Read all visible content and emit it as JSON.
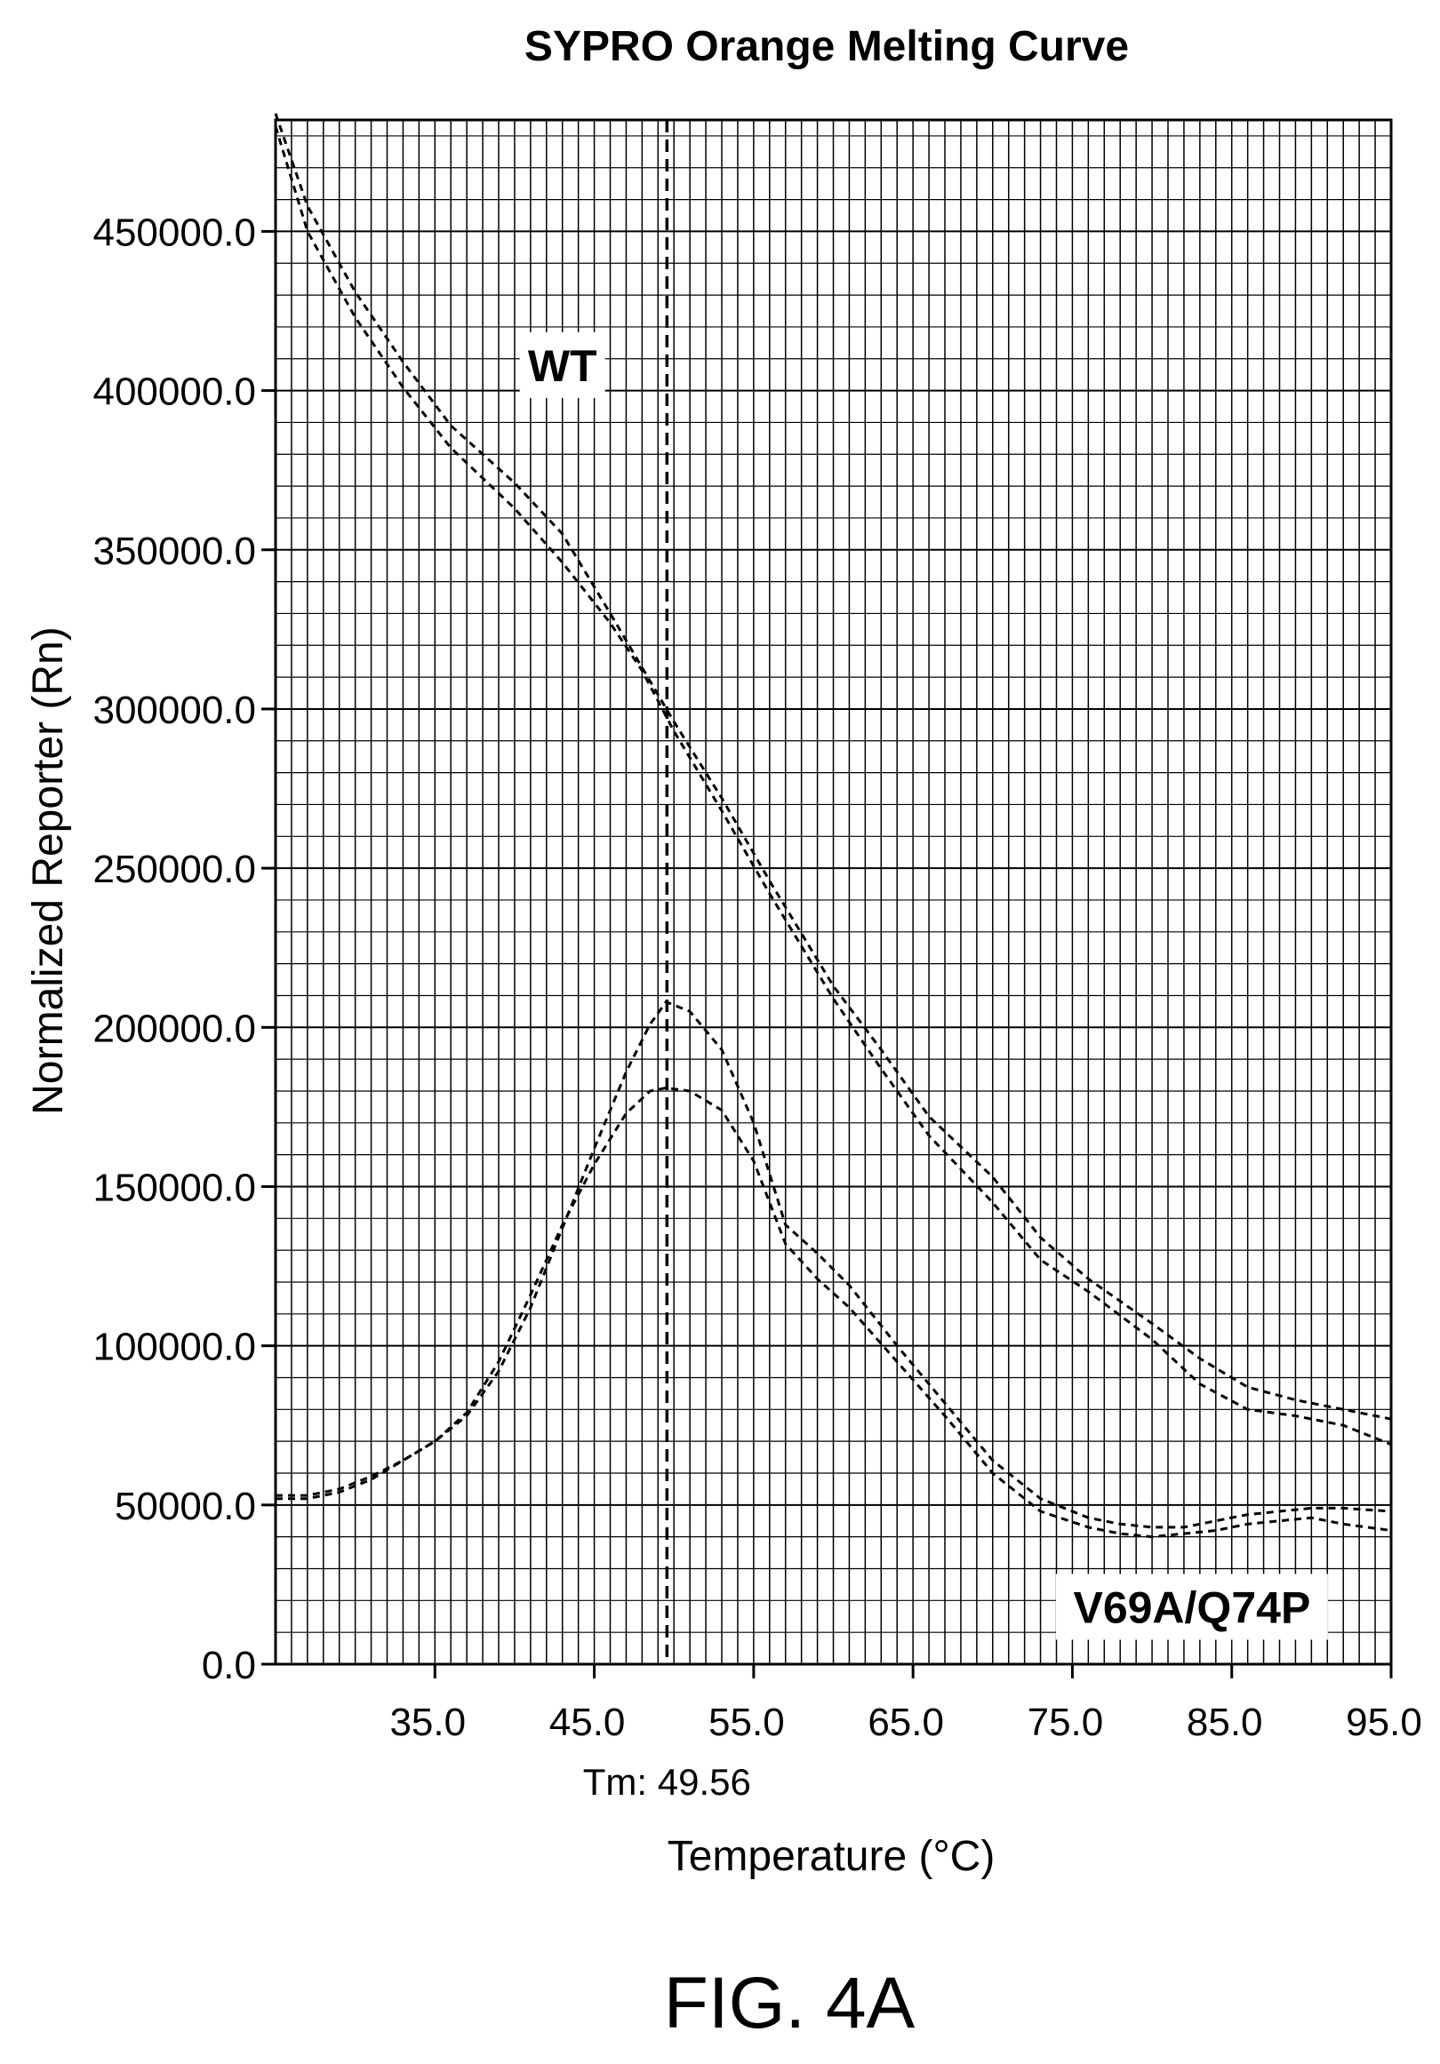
{
  "figure_label": "FIG. 4A",
  "chart_data": {
    "type": "line",
    "title": "SYPRO Orange Melting Curve",
    "xlabel": "Temperature (°C)",
    "ylabel": "Normalized Reporter (Rn)",
    "xlim": [
      25.0,
      95.0
    ],
    "ylim": [
      0.0,
      485000.0
    ],
    "x_ticks": [
      35.0,
      45.0,
      55.0,
      65.0,
      75.0,
      85.0,
      95.0
    ],
    "x_tick_labels": [
      "35.0",
      "45.0",
      "55.0",
      "65.0",
      "75.0",
      "85.0",
      "95.0"
    ],
    "y_ticks": [
      0.0,
      50000.0,
      100000.0,
      150000.0,
      200000.0,
      250000.0,
      300000.0,
      350000.0,
      400000.0,
      450000.0
    ],
    "y_tick_labels": [
      "0.0",
      "50000.0",
      "100000.0",
      "150000.0",
      "200000.0",
      "250000.0",
      "300000.0",
      "350000.0",
      "400000.0",
      "450000.0"
    ],
    "grid": true,
    "line_style": "dashed",
    "marker_line": {
      "x": 49.56,
      "label": "Tm: 49.56",
      "style": "dashed"
    },
    "annotations": [
      {
        "text": "WT",
        "x": 43.0,
        "y": 408000
      },
      {
        "text": "V69A/Q74P",
        "x": 82.5,
        "y": 18000
      }
    ],
    "series": [
      {
        "group": "WT",
        "x": [
          25,
          27,
          30,
          33,
          36,
          40,
          43,
          46,
          48,
          50,
          53,
          56,
          60,
          63,
          66,
          70,
          73,
          76,
          80,
          83,
          86,
          89,
          92,
          95
        ],
        "y": [
          483000,
          450000,
          423000,
          401000,
          382000,
          363000,
          346000,
          327000,
          312000,
          293000,
          268000,
          242000,
          209000,
          187000,
          166000,
          145000,
          127000,
          117000,
          102000,
          88000,
          80000,
          78000,
          75000,
          69000
        ]
      },
      {
        "group": "WT",
        "x": [
          25,
          27,
          30,
          33,
          36,
          40,
          43,
          46,
          48,
          50,
          53,
          56,
          60,
          63,
          66,
          70,
          73,
          76,
          80,
          83,
          86,
          89,
          92,
          95
        ],
        "y": [
          487000,
          458000,
          431000,
          409000,
          389000,
          371000,
          355000,
          330000,
          313000,
          296000,
          272000,
          246000,
          213000,
          193000,
          172000,
          153000,
          134000,
          121000,
          107000,
          96000,
          87000,
          83000,
          80000,
          77000
        ]
      },
      {
        "group": "V69A/Q74P",
        "x": [
          25,
          27,
          29,
          31,
          33,
          35,
          37,
          39,
          41,
          43,
          45,
          47,
          48.5,
          49.5,
          51,
          53,
          55,
          57,
          59,
          61,
          64,
          67,
          70,
          73,
          76,
          78,
          80,
          82,
          84,
          86,
          88,
          90,
          92,
          95
        ],
        "y": [
          53000,
          53000,
          55000,
          59000,
          64000,
          70000,
          78000,
          92000,
          112000,
          137000,
          162000,
          186000,
          201000,
          208000,
          205000,
          193000,
          170000,
          138000,
          129000,
          119000,
          100000,
          82000,
          64000,
          52000,
          46000,
          44000,
          43000,
          43000,
          45000,
          47000,
          48000,
          49000,
          49000,
          48000
        ]
      },
      {
        "group": "V69A/Q74P",
        "x": [
          25,
          27,
          29,
          31,
          33,
          35,
          37,
          39,
          41,
          43,
          45,
          47,
          48.5,
          49.5,
          51,
          53,
          55,
          57,
          59,
          61,
          64,
          67,
          70,
          73,
          76,
          78,
          80,
          82,
          84,
          86,
          88,
          90,
          92,
          95
        ],
        "y": [
          52000,
          52000,
          54000,
          58000,
          64000,
          70000,
          79000,
          95000,
          116000,
          138000,
          157000,
          173000,
          180000,
          181000,
          180000,
          174000,
          158000,
          132000,
          121000,
          112000,
          95000,
          78000,
          60000,
          48000,
          43000,
          41000,
          40000,
          41000,
          42000,
          44000,
          45000,
          46000,
          44000,
          42000
        ]
      }
    ]
  }
}
